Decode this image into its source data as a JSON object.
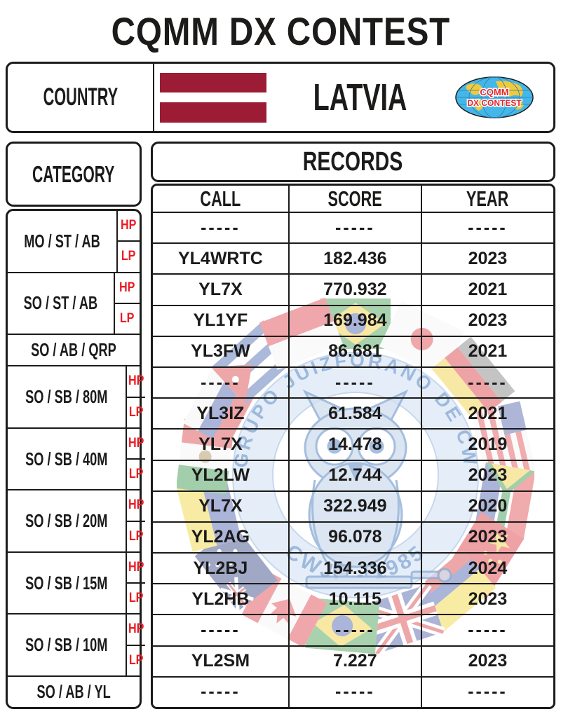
{
  "title": "CQMM DX CONTEST",
  "country_panel": {
    "label": "COUNTRY",
    "country": "LATVIA",
    "flag_name": "latvia-flag"
  },
  "logo": {
    "line1": "CQMM",
    "line2": "DX CONTEST"
  },
  "category_panel": {
    "header": "CATEGORY"
  },
  "records_panel": {
    "header": "RECORDS",
    "columns": {
      "call": "CALL",
      "score": "SCORE",
      "year": "YEAR"
    }
  },
  "watermark": {
    "ring_text_top": "GRUPO JUIZFORANO DE CW",
    "ring_text_bottom": "CWJF - 1985"
  },
  "colors": {
    "ink": "#1c1b1a",
    "accent_red": "#EC1C24",
    "flag_red": "#9D1C35"
  },
  "records": [
    {
      "category": "MO / ST / AB",
      "entries": [
        {
          "power": "HP",
          "call": "-----",
          "score": "-----",
          "year": "-----"
        },
        {
          "power": "LP",
          "call": "YL4WRTC",
          "score": "182.436",
          "year": "2023"
        }
      ]
    },
    {
      "category": "SO / ST / AB",
      "entries": [
        {
          "power": "HP",
          "call": "YL7X",
          "score": "770.932",
          "year": "2021"
        },
        {
          "power": "LP",
          "call": "YL1YF",
          "score": "169.984",
          "year": "2023"
        }
      ]
    },
    {
      "category": "SO / AB / QRP",
      "entries": [
        {
          "power": "",
          "call": "YL3FW",
          "score": "86.681",
          "year": "2021"
        }
      ]
    },
    {
      "category": "SO / SB / 80M",
      "entries": [
        {
          "power": "HP",
          "call": "-----",
          "score": "-----",
          "year": "-----"
        },
        {
          "power": "LP",
          "call": "YL3IZ",
          "score": "61.584",
          "year": "2021"
        }
      ]
    },
    {
      "category": "SO / SB / 40M",
      "entries": [
        {
          "power": "HP",
          "call": "YL7X",
          "score": "14.478",
          "year": "2019"
        },
        {
          "power": "LP",
          "call": "YL2LW",
          "score": "12.744",
          "year": "2023"
        }
      ]
    },
    {
      "category": "SO / SB / 20M",
      "entries": [
        {
          "power": "HP",
          "call": "YL7X",
          "score": "322.949",
          "year": "2020"
        },
        {
          "power": "LP",
          "call": "YL2AG",
          "score": "96.078",
          "year": "2023"
        }
      ]
    },
    {
      "category": "SO / SB / 15M",
      "entries": [
        {
          "power": "HP",
          "call": "YL2BJ",
          "score": "154.336",
          "year": "2024"
        },
        {
          "power": "LP",
          "call": "YL2HB",
          "score": "10.115",
          "year": "2023"
        }
      ]
    },
    {
      "category": "SO / SB / 10M",
      "entries": [
        {
          "power": "HP",
          "call": "-----",
          "score": "-----",
          "year": "-----"
        },
        {
          "power": "LP",
          "call": "YL2SM",
          "score": "7.227",
          "year": "2023"
        }
      ]
    },
    {
      "category": "SO / AB / YL",
      "entries": [
        {
          "power": "",
          "call": "-----",
          "score": "-----",
          "year": "-----"
        }
      ]
    }
  ]
}
